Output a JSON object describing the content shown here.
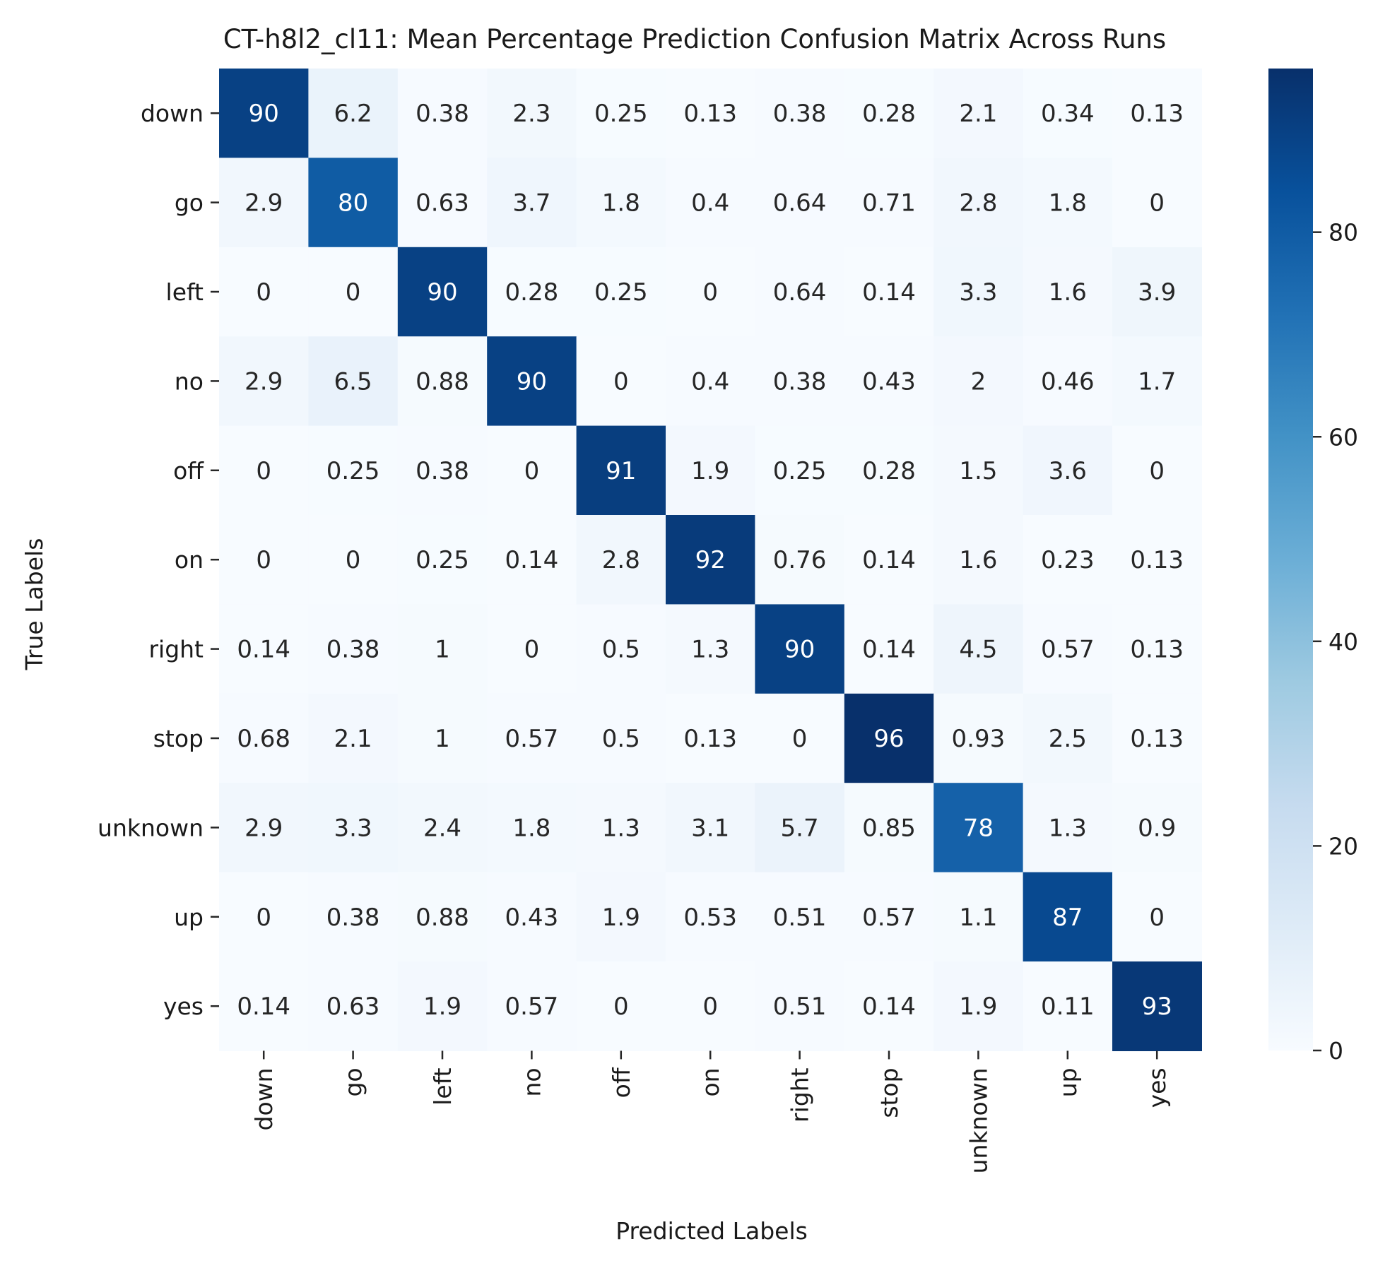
{
  "chart_data": {
    "type": "heatmap",
    "title": "CT-h8l2_cl11: Mean Percentage Prediction Confusion Matrix Across Runs",
    "xlabel": "Predicted Labels",
    "ylabel": "True Labels",
    "x_categories": [
      "down",
      "go",
      "left",
      "no",
      "off",
      "on",
      "right",
      "stop",
      "unknown",
      "up",
      "yes"
    ],
    "y_categories": [
      "down",
      "go",
      "left",
      "no",
      "off",
      "on",
      "right",
      "stop",
      "unknown",
      "up",
      "yes"
    ],
    "values": [
      [
        "90",
        "6.2",
        "0.38",
        "2.3",
        "0.25",
        "0.13",
        "0.38",
        "0.28",
        "2.1",
        "0.34",
        "0.13"
      ],
      [
        "2.9",
        "80",
        "0.63",
        "3.7",
        "1.8",
        "0.4",
        "0.64",
        "0.71",
        "2.8",
        "1.8",
        "0"
      ],
      [
        "0",
        "0",
        "90",
        "0.28",
        "0.25",
        "0",
        "0.64",
        "0.14",
        "3.3",
        "1.6",
        "3.9"
      ],
      [
        "2.9",
        "6.5",
        "0.88",
        "90",
        "0",
        "0.4",
        "0.38",
        "0.43",
        "2",
        "0.46",
        "1.7"
      ],
      [
        "0",
        "0.25",
        "0.38",
        "0",
        "91",
        "1.9",
        "0.25",
        "0.28",
        "1.5",
        "3.6",
        "0"
      ],
      [
        "0",
        "0",
        "0.25",
        "0.14",
        "2.8",
        "92",
        "0.76",
        "0.14",
        "1.6",
        "0.23",
        "0.13"
      ],
      [
        "0.14",
        "0.38",
        "1",
        "0",
        "0.5",
        "1.3",
        "90",
        "0.14",
        "4.5",
        "0.57",
        "0.13"
      ],
      [
        "0.68",
        "2.1",
        "1",
        "0.57",
        "0.5",
        "0.13",
        "0",
        "96",
        "0.93",
        "2.5",
        "0.13"
      ],
      [
        "2.9",
        "3.3",
        "2.4",
        "1.8",
        "1.3",
        "3.1",
        "5.7",
        "0.85",
        "78",
        "1.3",
        "0.9"
      ],
      [
        "0",
        "0.38",
        "0.88",
        "0.43",
        "1.9",
        "0.53",
        "0.51",
        "0.57",
        "1.1",
        "87",
        "0"
      ],
      [
        "0.14",
        "0.63",
        "1.9",
        "0.57",
        "0",
        "0",
        "0.51",
        "0.14",
        "1.9",
        "0.11",
        "93"
      ]
    ],
    "colormap": "Blues",
    "colorbar": {
      "min": 0,
      "max": 96,
      "ticks": [
        "0",
        "20",
        "40",
        "60",
        "80"
      ]
    },
    "grid": false,
    "legend": "colorbar-right"
  },
  "colors": {
    "low": "#f7fbff",
    "high": "#08306b",
    "text_dark": "#262626",
    "text_light": "#ffffff"
  }
}
